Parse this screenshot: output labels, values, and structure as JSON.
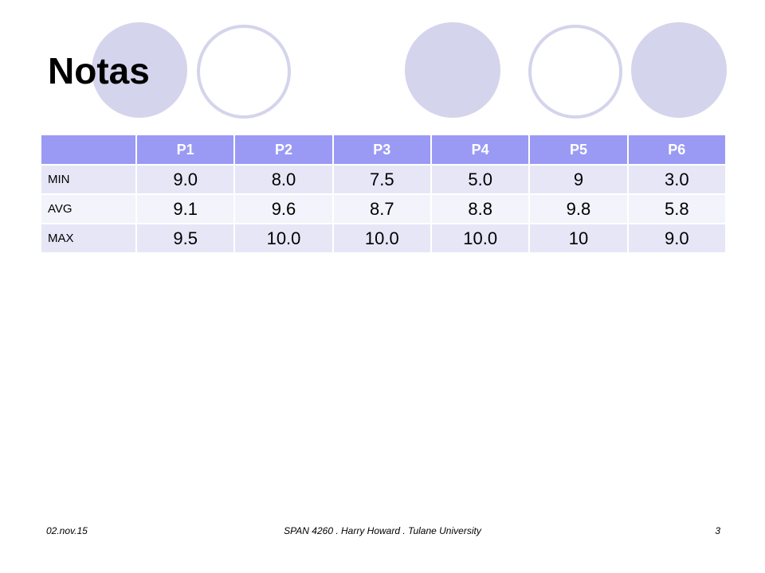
{
  "title": "Notas",
  "table": {
    "header": [
      "P1",
      "P2",
      "P3",
      "P4",
      "P5",
      "P6"
    ],
    "rows": [
      [
        "MIN",
        "9.0",
        "8.0",
        "7.5",
        "5.0",
        "9",
        "3.0"
      ],
      [
        "AVG",
        "9.1",
        "9.6",
        "8.7",
        "8.8",
        "9.8",
        "5.8"
      ],
      [
        "MAX",
        "9.5",
        "10.0",
        "10.0",
        "10.0",
        "10",
        "9.0"
      ]
    ]
  },
  "footer": {
    "date": "02.nov.15",
    "center": "SPAN 4260 . Harry Howard . Tulane University",
    "page": "3"
  }
}
